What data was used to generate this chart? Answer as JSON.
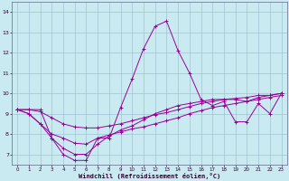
{
  "xlabel": "Windchill (Refroidissement éolien,°C)",
  "background_color": "#c8eaf0",
  "line_color": "#990099",
  "grid_color": "#99bbcc",
  "xlim": [
    -0.5,
    23.5
  ],
  "ylim": [
    6.5,
    14.5
  ],
  "xticks": [
    0,
    1,
    2,
    3,
    4,
    5,
    6,
    7,
    8,
    9,
    10,
    11,
    12,
    13,
    14,
    15,
    16,
    17,
    18,
    19,
    20,
    21,
    22,
    23
  ],
  "yticks": [
    7,
    8,
    9,
    10,
    11,
    12,
    13,
    14
  ],
  "series": [
    [
      9.2,
      9.2,
      9.2,
      7.8,
      7.0,
      6.7,
      6.7,
      7.8,
      7.8,
      9.3,
      10.7,
      12.2,
      13.3,
      13.55,
      12.1,
      11.0,
      9.7,
      9.4,
      9.6,
      8.6,
      8.6,
      9.5,
      9.0,
      10.0
    ],
    [
      9.2,
      9.2,
      9.1,
      8.8,
      8.5,
      8.35,
      8.3,
      8.3,
      8.4,
      8.5,
      8.65,
      8.8,
      8.95,
      9.05,
      9.2,
      9.35,
      9.5,
      9.6,
      9.7,
      9.75,
      9.8,
      9.9,
      9.9,
      10.0
    ],
    [
      9.2,
      9.0,
      8.5,
      8.0,
      7.8,
      7.55,
      7.5,
      7.8,
      7.95,
      8.1,
      8.25,
      8.35,
      8.5,
      8.65,
      8.8,
      9.0,
      9.15,
      9.3,
      9.4,
      9.5,
      9.6,
      9.7,
      9.8,
      9.9
    ],
    [
      9.2,
      9.0,
      8.5,
      7.8,
      7.3,
      7.0,
      7.0,
      7.5,
      7.9,
      8.2,
      8.4,
      8.7,
      9.0,
      9.2,
      9.4,
      9.5,
      9.6,
      9.7,
      9.7,
      9.7,
      9.6,
      9.8,
      9.9,
      10.0
    ]
  ]
}
